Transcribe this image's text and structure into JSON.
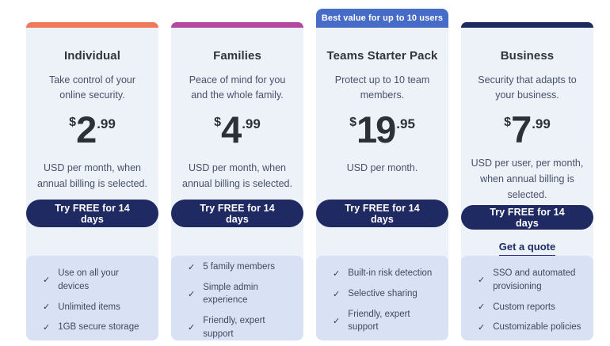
{
  "colors": {
    "page_background": "#FFFFFF",
    "card_background": "#EDF1F8",
    "features_background": "#D9E2F4",
    "button_background": "#1F2A63",
    "button_text": "#FFFFFF",
    "heading_text": "#33353B",
    "body_text": "#47516A",
    "link_text": "#1F2B66"
  },
  "badge": {
    "label": "Best value for up to 10 users",
    "background": "#466CC8"
  },
  "cards": [
    {
      "title": "Individual",
      "description": "Take control of your online security.",
      "accent_color": "#F0795C",
      "price": {
        "currency": "$",
        "whole": "2",
        "fraction": ".99"
      },
      "billing_note": "USD per month, when annual billing is selected.",
      "cta_label": "Try FREE for 14 days",
      "features": [
        "Use on all your devices",
        "Unlimited items",
        "1GB secure storage"
      ]
    },
    {
      "title": "Families",
      "description": "Peace of mind for you and the whole family.",
      "accent_color": "#B2499F",
      "price": {
        "currency": "$",
        "whole": "4",
        "fraction": ".99"
      },
      "billing_note": "USD per month, when annual billing is selected.",
      "cta_label": "Try FREE for 14 days",
      "features": [
        "5 family members",
        "Simple admin experience",
        "Friendly, expert support"
      ]
    },
    {
      "title": "Teams Starter Pack",
      "description": "Protect up to 10 team members.",
      "accent_color": "#466CC8",
      "price": {
        "currency": "$",
        "whole": "19",
        "fraction": ".95"
      },
      "billing_note": "USD per month.",
      "cta_label": "Try FREE for 14 days",
      "features": [
        "Built-in risk detection",
        "Selective sharing",
        "Friendly, expert support"
      ]
    },
    {
      "title": "Business",
      "description": "Security that adapts to your business.",
      "accent_color": "#1C2A5E",
      "price": {
        "currency": "$",
        "whole": "7",
        "fraction": ".99"
      },
      "billing_note": "USD per user, per month, when annual billing is selected.",
      "cta_label": "Try FREE for 14 days",
      "quote_label": "Get a quote",
      "features": [
        "SSO and automated provisioning",
        "Custom reports",
        "Customizable policies"
      ]
    }
  ],
  "icons": {
    "feature_check": "check-icon",
    "check_glyph": "✓"
  }
}
